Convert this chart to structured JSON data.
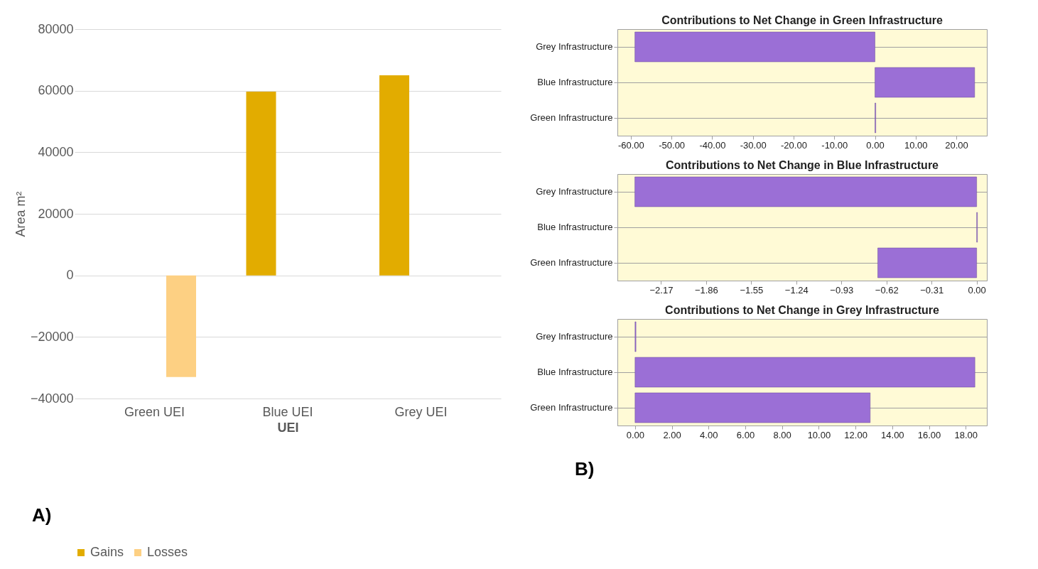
{
  "chart_data": [
    {
      "type": "bar",
      "categories": [
        "Green UEI",
        "Blue UEI",
        "Grey UEI"
      ],
      "xlabel": "UEI",
      "ylabel": "Area m²",
      "series": [
        {
          "name": "Gains",
          "color": "#e2ac00",
          "values": [
            null,
            59700,
            65000
          ]
        },
        {
          "name": "Losses",
          "color": "#fdd083",
          "values": [
            -33000,
            null,
            null
          ]
        }
      ],
      "ylim": [
        -40000,
        80000
      ],
      "yticks": [
        -40000,
        -20000,
        0,
        20000,
        40000,
        60000,
        80000
      ],
      "grid": "y",
      "legend": "bottom",
      "annotations": [
        "A)"
      ]
    },
    {
      "type": "bar",
      "orientation": "horizontal",
      "title": "Contributions to Net Change in Green Infrastructure",
      "categories": [
        "Grey Infrastructure",
        "Blue Infrastructure",
        "Green Infrastructure"
      ],
      "values": [
        -59,
        24.5,
        0.2
      ],
      "color": "#9b6fd6",
      "xlim": [
        -63.3,
        27.5
      ],
      "xticks": [
        {
          "value": -60,
          "label": "-60.00"
        },
        {
          "value": -50,
          "label": "-50.00"
        },
        {
          "value": -40,
          "label": "-40.00"
        },
        {
          "value": -30,
          "label": "-30.00"
        },
        {
          "value": -20,
          "label": "-20.00"
        },
        {
          "value": -10,
          "label": "-10.00"
        },
        {
          "value": 0,
          "label": "0.00"
        },
        {
          "value": 10,
          "label": "10.00"
        },
        {
          "value": 20,
          "label": "20.00"
        }
      ],
      "grid": "y"
    },
    {
      "type": "bar",
      "orientation": "horizontal",
      "title": "Contributions to Net Change in Blue Infrastructure",
      "categories": [
        "Grey Infrastructure",
        "Blue Infrastructure",
        "Green Infrastructure"
      ],
      "values": [
        -2.35,
        0.005,
        -0.68
      ],
      "color": "#9b6fd6",
      "xlim": [
        -2.47,
        0.07
      ],
      "xticks": [
        -2.17,
        -1.86,
        -1.55,
        -1.24,
        -0.93,
        -0.62,
        -0.31,
        {
          "value": 0,
          "label": "0.00"
        }
      ],
      "grid": "y"
    },
    {
      "type": "bar",
      "orientation": "horizontal",
      "title": "Contributions to Net Change in Grey Infrastructure",
      "categories": [
        "Grey Infrastructure",
        "Blue Infrastructure",
        "Green Infrastructure"
      ],
      "values": [
        0.05,
        18.5,
        12.8
      ],
      "color": "#9b6fd6",
      "xlim": [
        -0.96,
        19.15
      ],
      "xticks": [
        {
          "value": 0,
          "label": "0.00"
        },
        {
          "value": 2,
          "label": "2.00"
        },
        {
          "value": 4,
          "label": "4.00"
        },
        {
          "value": 6,
          "label": "6.00"
        },
        {
          "value": 8,
          "label": "8.00"
        },
        {
          "value": 10,
          "label": "10.00"
        },
        {
          "value": 12,
          "label": "12.00"
        },
        {
          "value": 14,
          "label": "14.00"
        },
        {
          "value": 16,
          "label": "16.00"
        },
        {
          "value": 18,
          "label": "18.00"
        }
      ],
      "grid": "y",
      "annotations": [
        "B)"
      ]
    }
  ]
}
